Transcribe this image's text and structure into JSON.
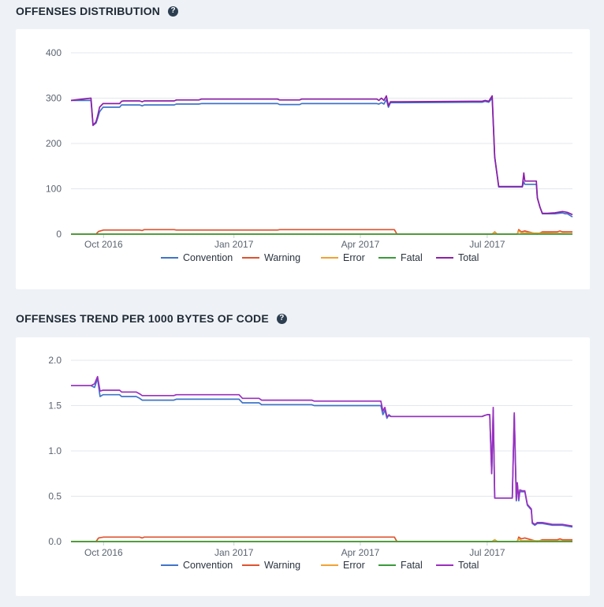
{
  "sections": [
    {
      "title": "OFFENSES DISTRIBUTION",
      "help_icon": "question-circle-icon"
    },
    {
      "title": "OFFENSES TREND PER 1000 BYTES OF CODE",
      "help_icon": "question-circle-icon"
    }
  ],
  "chart_data": [
    {
      "type": "line",
      "title": "OFFENSES DISTRIBUTION",
      "xlim": [
        0,
        100
      ],
      "x_ticks": [
        {
          "x": 6.5,
          "label": "Oct 2016"
        },
        {
          "x": 32.5,
          "label": "Jan 2017"
        },
        {
          "x": 57.7,
          "label": "Apr 2017"
        },
        {
          "x": 83.0,
          "label": "Jul 2017"
        }
      ],
      "ylim": [
        0,
        400
      ],
      "y_ticks": [
        0,
        100,
        200,
        300,
        400
      ],
      "y_tick_labels": [
        "0",
        "100",
        "200",
        "300",
        "400"
      ],
      "series": [
        {
          "name": "Convention",
          "color": "#3f74c9",
          "x": [
            0,
            4,
            4.4,
            5,
            5.3,
            5.7,
            6.4,
            9.7,
            10.1,
            10.5,
            13.7,
            14.2,
            14.6,
            20.6,
            21.0,
            25.5,
            26.0,
            41.2,
            41.6,
            45.6,
            46.0,
            61.0,
            61.4,
            61.9,
            62.4,
            62.9,
            63.3,
            63.7,
            64.1,
            64.5,
            80.0,
            82.0,
            82.6,
            83.3,
            84.0,
            84.5,
            85.3,
            85.7,
            90.0,
            90.3,
            90.5,
            91.0,
            91.3,
            92.8,
            93.0,
            93.5,
            94.0,
            95.0,
            96.5,
            98.0,
            98.5,
            99.0,
            100
          ],
          "values": [
            295,
            295,
            240,
            245,
            255,
            270,
            280,
            280,
            285,
            285,
            285,
            283,
            285,
            285,
            287,
            287,
            288,
            288,
            286,
            286,
            288,
            288,
            287,
            290,
            287,
            297,
            280,
            290,
            290,
            290,
            291,
            291,
            293,
            291,
            300,
            170,
            104,
            104,
            104,
            115,
            110,
            110,
            110,
            110,
            80,
            60,
            45,
            45,
            45,
            47,
            45,
            45,
            38
          ]
        },
        {
          "name": "Warning",
          "color": "#e0522e",
          "x": [
            0,
            5,
            5.5,
            6.5,
            13.7,
            14.2,
            14.6,
            20.6,
            21.0,
            41.2,
            41.6,
            64.5,
            65.0,
            84.0,
            84.5,
            85.0,
            89.0,
            89.3,
            89.8,
            90.5,
            93.0,
            94.0,
            95.0,
            97.0,
            97.5,
            98,
            100
          ],
          "values": [
            0,
            0,
            6,
            9,
            9,
            8,
            10,
            10,
            9,
            9,
            10,
            10,
            0,
            0,
            5,
            0,
            0,
            10,
            5,
            7,
            0,
            5,
            5,
            5,
            7,
            5,
            5
          ]
        },
        {
          "name": "Error",
          "color": "#f2a133",
          "x": [
            0,
            84.0,
            84.5,
            85.0,
            89.0,
            89.3,
            89.8,
            100
          ],
          "values": [
            0,
            0,
            4,
            0,
            0,
            7,
            3,
            1
          ]
        },
        {
          "name": "Fatal",
          "color": "#3a9a3a",
          "x": [
            0,
            100
          ],
          "values": [
            0,
            0
          ]
        },
        {
          "name": "Total",
          "color": "#8e1fa8",
          "x": [
            0,
            4,
            4.4,
            5,
            5.3,
            5.7,
            6.4,
            9.7,
            10.1,
            10.5,
            13.7,
            14.2,
            14.6,
            20.6,
            21.0,
            25.5,
            26.0,
            41.2,
            41.6,
            45.6,
            46.0,
            61.0,
            61.4,
            61.9,
            62.4,
            62.9,
            63.3,
            63.7,
            64.1,
            64.5,
            80.0,
            82.0,
            82.6,
            83.3,
            84.0,
            84.5,
            85.3,
            85.7,
            90.0,
            90.3,
            90.5,
            91.0,
            91.3,
            92.8,
            93.0,
            93.5,
            94.0,
            95.0,
            96.5,
            98.0,
            98.5,
            99.0,
            100
          ],
          "values": [
            295,
            300,
            240,
            248,
            260,
            280,
            288,
            288,
            293,
            294,
            294,
            292,
            294,
            294,
            296,
            296,
            298,
            298,
            296,
            296,
            298,
            298,
            295,
            300,
            295,
            305,
            283,
            292,
            292,
            292,
            293,
            293,
            295,
            293,
            305,
            170,
            105,
            105,
            105,
            135,
            117,
            117,
            117,
            117,
            80,
            60,
            46,
            46,
            47,
            50,
            49,
            48,
            43
          ]
        }
      ],
      "legend": [
        "Convention",
        "Warning",
        "Error",
        "Fatal",
        "Total"
      ],
      "legend_position": "bottom"
    },
    {
      "type": "line",
      "title": "OFFENSES TREND PER 1000 BYTES OF CODE",
      "xlim": [
        0,
        100
      ],
      "x_ticks": [
        {
          "x": 6.5,
          "label": "Oct 2016"
        },
        {
          "x": 32.5,
          "label": "Jan 2017"
        },
        {
          "x": 57.7,
          "label": "Apr 2017"
        },
        {
          "x": 83.0,
          "label": "Jul 2017"
        }
      ],
      "ylim": [
        0,
        2.0
      ],
      "y_ticks": [
        0,
        0.5,
        1.0,
        1.5,
        2.0
      ],
      "y_tick_labels": [
        "0.0",
        "0.5",
        "1.0",
        "1.5",
        "2.0"
      ],
      "series": [
        {
          "name": "Convention",
          "color": "#3f74c9",
          "x": [
            0,
            4.0,
            4.7,
            5.3,
            5.8,
            6.4,
            9.7,
            10.1,
            13.0,
            13.7,
            14.2,
            14.6,
            20.5,
            21.0,
            25.5,
            26.0,
            33.5,
            34.2,
            37.5,
            38.0,
            48.0,
            48.5,
            60.0,
            60.5,
            61.8,
            62.2,
            62.6,
            63.0,
            63.4,
            63.8,
            64.3,
            64.7,
            80.0,
            82.0,
            82.4,
            83.0,
            83.5,
            83.9,
            84.2,
            84.5,
            85.0,
            85.5,
            88.0,
            88.4,
            88.8,
            89.0,
            89.3,
            89.5,
            90.0,
            90.5,
            91.0,
            91.8,
            92.0,
            92.5,
            93.0,
            94.0,
            95.0,
            96.0,
            98.0,
            100
          ],
          "values": [
            1.72,
            1.72,
            1.7,
            1.8,
            1.6,
            1.62,
            1.62,
            1.6,
            1.6,
            1.58,
            1.56,
            1.56,
            1.56,
            1.57,
            1.57,
            1.57,
            1.57,
            1.53,
            1.53,
            1.51,
            1.51,
            1.5,
            1.5,
            1.5,
            1.5,
            1.4,
            1.45,
            1.36,
            1.4,
            1.38,
            1.38,
            1.38,
            1.38,
            1.38,
            1.39,
            1.4,
            1.4,
            0.75,
            1.45,
            0.48,
            0.48,
            0.48,
            0.48,
            1.4,
            0.45,
            0.65,
            0.45,
            0.55,
            0.55,
            0.55,
            0.4,
            0.35,
            0.2,
            0.18,
            0.2,
            0.2,
            0.19,
            0.18,
            0.18,
            0.16
          ]
        },
        {
          "name": "Warning",
          "color": "#e0522e",
          "x": [
            0,
            5,
            5.5,
            6.5,
            13.7,
            14.2,
            14.6,
            20.6,
            21.0,
            41.2,
            41.6,
            64.5,
            65.0,
            84.0,
            84.5,
            85.0,
            89.0,
            89.3,
            89.8,
            90.5,
            93.0,
            94.0,
            95.0,
            97.0,
            97.5,
            98,
            100
          ],
          "values": [
            0,
            0,
            0.04,
            0.05,
            0.05,
            0.04,
            0.05,
            0.05,
            0.05,
            0.05,
            0.05,
            0.05,
            0,
            0,
            0.02,
            0,
            0,
            0.05,
            0.03,
            0.04,
            0,
            0.02,
            0.02,
            0.02,
            0.03,
            0.02,
            0.02
          ]
        },
        {
          "name": "Error",
          "color": "#f2a133",
          "x": [
            0,
            84.0,
            84.5,
            85.0,
            89.0,
            89.3,
            89.8,
            100
          ],
          "values": [
            0,
            0,
            0.02,
            0,
            0,
            0.03,
            0.01,
            0.005
          ]
        },
        {
          "name": "Fatal",
          "color": "#3a9a3a",
          "x": [
            0,
            100
          ],
          "values": [
            0,
            0
          ]
        },
        {
          "name": "Total",
          "color": "#9b2fbf",
          "x": [
            0,
            4.0,
            4.7,
            5.3,
            5.8,
            6.4,
            9.7,
            10.1,
            13.0,
            13.7,
            14.2,
            14.6,
            20.5,
            21.0,
            25.5,
            26.0,
            33.5,
            34.2,
            37.5,
            38.0,
            48.0,
            48.5,
            60.0,
            60.5,
            61.8,
            62.2,
            62.6,
            63.0,
            63.4,
            63.8,
            64.3,
            64.7,
            80.0,
            82.0,
            82.4,
            83.0,
            83.5,
            83.9,
            84.2,
            84.5,
            85.0,
            85.5,
            88.0,
            88.4,
            88.8,
            89.0,
            89.3,
            89.5,
            90.0,
            90.5,
            91.0,
            91.8,
            92.0,
            92.5,
            93.0,
            94.0,
            95.0,
            96.0,
            98.0,
            100
          ],
          "values": [
            1.72,
            1.72,
            1.74,
            1.82,
            1.66,
            1.67,
            1.67,
            1.65,
            1.65,
            1.63,
            1.61,
            1.61,
            1.61,
            1.62,
            1.62,
            1.62,
            1.62,
            1.58,
            1.58,
            1.56,
            1.56,
            1.55,
            1.55,
            1.55,
            1.55,
            1.44,
            1.48,
            1.38,
            1.39,
            1.38,
            1.38,
            1.38,
            1.38,
            1.38,
            1.39,
            1.4,
            1.4,
            0.75,
            1.48,
            0.48,
            0.48,
            0.48,
            0.48,
            1.42,
            0.46,
            0.65,
            0.47,
            0.57,
            0.56,
            0.56,
            0.41,
            0.36,
            0.21,
            0.19,
            0.21,
            0.21,
            0.2,
            0.19,
            0.19,
            0.17
          ]
        }
      ],
      "legend": [
        "Convention",
        "Warning",
        "Error",
        "Fatal",
        "Total"
      ],
      "legend_position": "bottom"
    }
  ]
}
